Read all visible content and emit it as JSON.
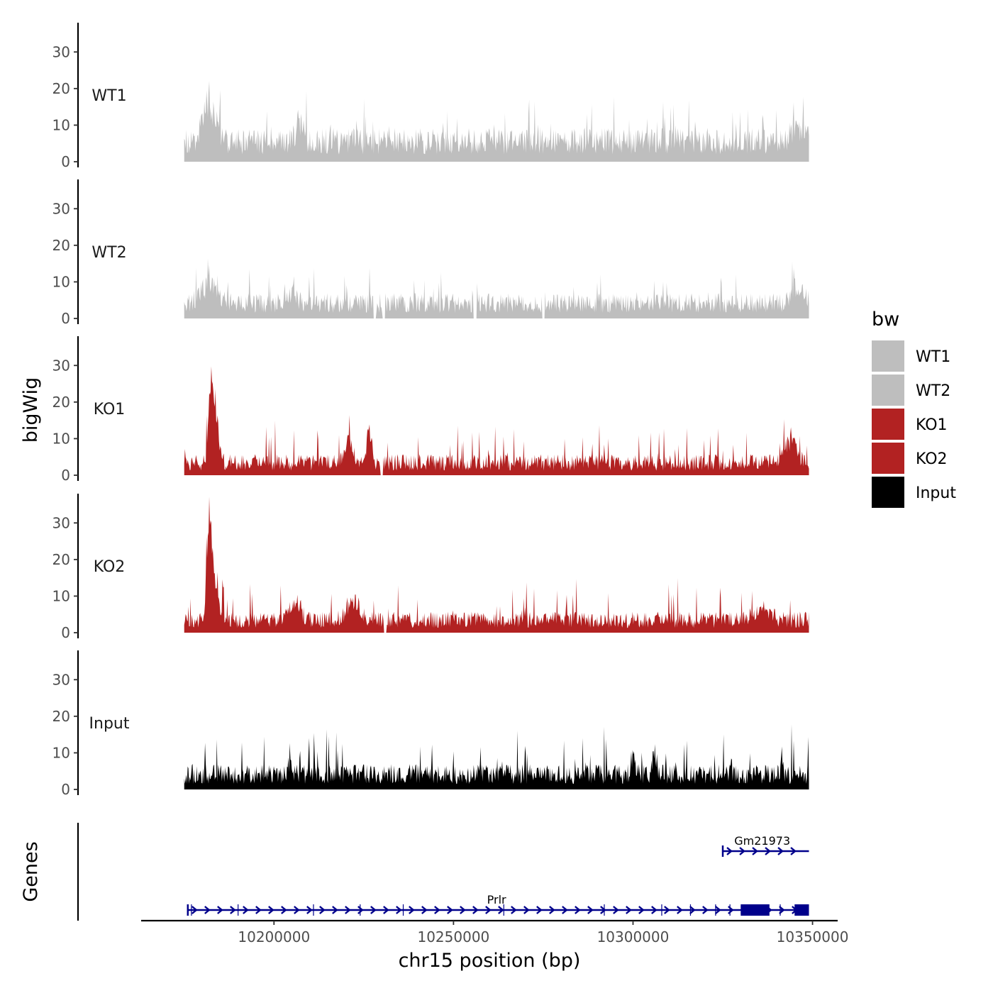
{
  "chart_data": {
    "type": "area",
    "title": "",
    "ylabel": "bigWig",
    "genes_label": "Genes",
    "xlabel": "chr15 position (bp)",
    "xlim": [
      10163000,
      10357000
    ],
    "data_range": [
      10175000,
      10349000
    ],
    "ylim": [
      0,
      38
    ],
    "yticks": [
      0,
      10,
      20,
      30
    ],
    "xticks": [
      10200000,
      10250000,
      10300000,
      10350000
    ],
    "xtick_labels": [
      "10200000",
      "10250000",
      "10300000",
      "10350000"
    ],
    "tracks": [
      {
        "name": "WT1",
        "color": "#bebebe",
        "baseline": 8,
        "noise": 6,
        "gaps": [],
        "peaks": [
          {
            "x": 10182000,
            "h": 12,
            "w": 2500
          },
          {
            "x": 10207000,
            "h": 6,
            "w": 1500
          },
          {
            "x": 10346000,
            "h": 5,
            "w": 2500
          }
        ]
      },
      {
        "name": "WT2",
        "color": "#bebebe",
        "baseline": 6,
        "noise": 5,
        "gaps": [
          10228000,
          10230500,
          10256000,
          10275000
        ],
        "peaks": [
          {
            "x": 10182000,
            "h": 6,
            "w": 3000
          },
          {
            "x": 10205000,
            "h": 3,
            "w": 2000
          },
          {
            "x": 10346000,
            "h": 5,
            "w": 2500
          }
        ]
      },
      {
        "name": "KO1",
        "color": "#b22222",
        "baseline": 5,
        "noise": 6,
        "gaps": [
          10230000
        ],
        "peaks": [
          {
            "x": 10182500,
            "h": 24,
            "w": 1000
          },
          {
            "x": 10184000,
            "h": 12,
            "w": 1200
          },
          {
            "x": 10221000,
            "h": 8,
            "w": 1500
          },
          {
            "x": 10226500,
            "h": 10,
            "w": 1000
          },
          {
            "x": 10344000,
            "h": 8,
            "w": 2000
          }
        ]
      },
      {
        "name": "KO2",
        "color": "#b22222",
        "baseline": 5,
        "noise": 6,
        "gaps": [
          10231000
        ],
        "peaks": [
          {
            "x": 10182000,
            "h": 30,
            "w": 1000
          },
          {
            "x": 10183500,
            "h": 12,
            "w": 1200
          },
          {
            "x": 10206000,
            "h": 6,
            "w": 2000
          },
          {
            "x": 10222000,
            "h": 6,
            "w": 2500
          },
          {
            "x": 10336000,
            "h": 4,
            "w": 3000
          }
        ]
      },
      {
        "name": "Input",
        "color": "#000000",
        "baseline": 6,
        "noise": 7,
        "gaps": [],
        "peaks": [
          {
            "x": 10300000,
            "h": 6,
            "w": 800
          },
          {
            "x": 10306000,
            "h": 8,
            "w": 800
          }
        ]
      }
    ],
    "genes": [
      {
        "name": "Gm21973",
        "strand": "+",
        "start": 10325000,
        "end": 10349000,
        "row": 0,
        "thick": [],
        "label_x": 10336000
      },
      {
        "name": "Prlr",
        "strand": "+",
        "start": 10176000,
        "end": 10349000,
        "row": 1,
        "thick": [
          [
            10330000,
            10338000
          ],
          [
            10345000,
            10349000
          ]
        ],
        "label_x": 10262000
      }
    ],
    "gene_exons": [
      10177000,
      10190000,
      10211000,
      10224000,
      10236000,
      10264000,
      10292000,
      10308000,
      10316000,
      10323000,
      10327000,
      10333000,
      10341000
    ],
    "legend": {
      "title": "bw",
      "entries": [
        {
          "label": "WT1",
          "color": "#bebebe"
        },
        {
          "label": "WT2",
          "color": "#bebebe"
        },
        {
          "label": "KO1",
          "color": "#b22222"
        },
        {
          "label": "KO2",
          "color": "#b22222"
        },
        {
          "label": "Input",
          "color": "#000000"
        }
      ]
    },
    "gene_color": "#00008b"
  }
}
